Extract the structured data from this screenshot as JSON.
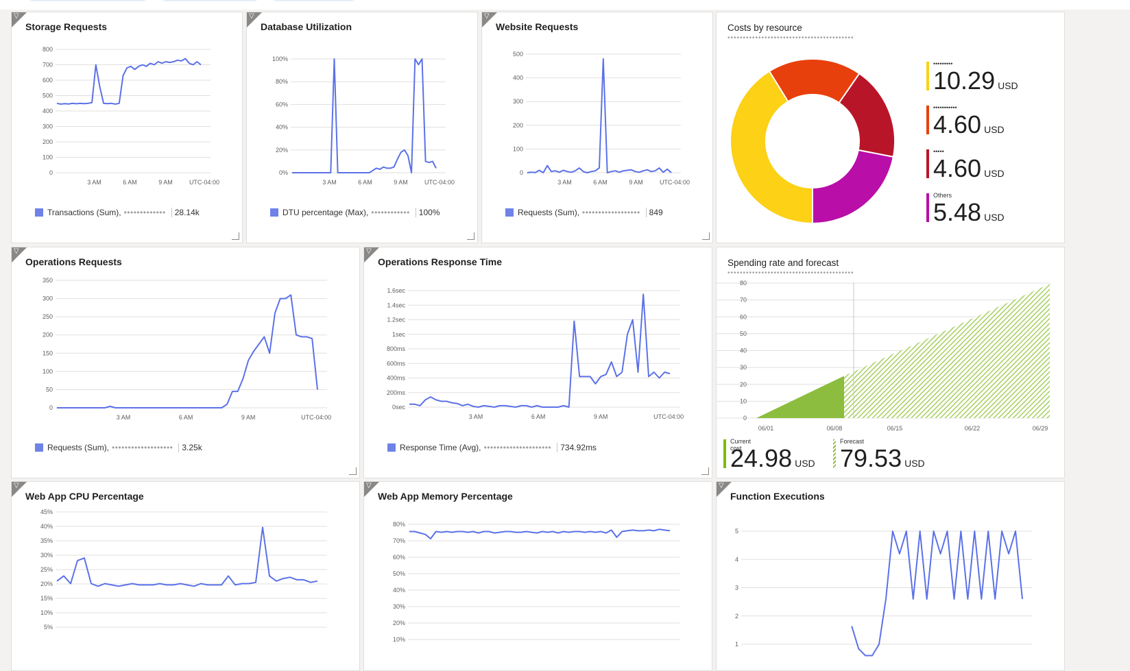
{
  "colors": {
    "line": "#5b71e8",
    "grid": "#e1dfdd",
    "pie": [
      "#fcd116",
      "#e8400c",
      "#b91528",
      "#b90ea8"
    ],
    "forecast": "#8cbd3f"
  },
  "tiles": {
    "storage": {
      "title": "Storage Requests",
      "legend_metric": "Transactions (Sum),",
      "legend_resource": "•••••••••••••",
      "legend_value": "28.14k"
    },
    "database": {
      "title": "Database Utilization",
      "legend_metric": "DTU percentage (Max),",
      "legend_resource": "••••••••••••",
      "legend_value": "100%"
    },
    "website": {
      "title": "Website Requests",
      "legend_metric": "Requests (Sum),",
      "legend_resource": "••••••••••••••••••",
      "legend_value": "849"
    },
    "costs": {
      "title": "Costs by resource",
      "subtitle": "•••••••••••••••••••••••••••••••••••••••••",
      "items": [
        {
          "label": "•••••••••",
          "value": "10.29",
          "unit": "USD"
        },
        {
          "label": "•••••••••••",
          "value": "4.60",
          "unit": "USD"
        },
        {
          "label": "•••••",
          "value": "4.60",
          "unit": "USD"
        },
        {
          "label": "Others",
          "value": "5.48",
          "unit": "USD"
        }
      ]
    },
    "ops_requests": {
      "title": "Operations Requests",
      "legend_metric": "Requests (Sum),",
      "legend_resource": "•••••••••••••••••••",
      "legend_value": "3.25k"
    },
    "ops_response": {
      "title": "Operations Response Time",
      "legend_metric": "Response Time (Avg),",
      "legend_resource": "•••••••••••••••••••••",
      "legend_value": "734.92ms"
    },
    "spending": {
      "title": "Spending rate and forecast",
      "subtitle": "•••••••••••••••••••••••••••••••••••••••••",
      "current_label": "Current cost",
      "current_value": "24.98",
      "current_unit": "USD",
      "forecast_label": "Forecast",
      "forecast_value": "79.53",
      "forecast_unit": "USD"
    },
    "cpu": {
      "title": "Web App CPU Percentage"
    },
    "memory": {
      "title": "Web App Memory Percentage"
    },
    "functions": {
      "title": "Function Executions"
    }
  },
  "chart_data": [
    {
      "id": "storage",
      "type": "line",
      "title": "Storage Requests",
      "yticks": [
        "800",
        "700",
        "600",
        "500",
        "400",
        "300",
        "200",
        "100",
        "0"
      ],
      "ylim": [
        0,
        800
      ],
      "xticks": [
        "3 AM",
        "6 AM",
        "9 AM",
        "UTC-04:00"
      ],
      "values": [
        450,
        445,
        448,
        446,
        450,
        447,
        450,
        448,
        450,
        455,
        700,
        560,
        450,
        448,
        450,
        445,
        450,
        630,
        680,
        690,
        670,
        690,
        700,
        690,
        710,
        700,
        720,
        710,
        720,
        715,
        720,
        730,
        725,
        740,
        710,
        700,
        720,
        700
      ]
    },
    {
      "id": "database",
      "type": "line",
      "title": "Database Utilization",
      "yticks": [
        "100%",
        "80%",
        "60%",
        "40%",
        "20%",
        "0%"
      ],
      "ylim": [
        0,
        100
      ],
      "xticks": [
        "3 AM",
        "6 AM",
        "9 AM",
        "UTC-04:00"
      ],
      "values": [
        0,
        0,
        0,
        0,
        0,
        0,
        0,
        0,
        0,
        0,
        0,
        0,
        100,
        0,
        0,
        0,
        0,
        0,
        0,
        0,
        0,
        0,
        0,
        2,
        4,
        3,
        5,
        4,
        4,
        5,
        12,
        18,
        20,
        15,
        0,
        100,
        95,
        100,
        10,
        9,
        10,
        4
      ]
    },
    {
      "id": "website",
      "type": "line",
      "title": "Website Requests",
      "yticks": [
        "500",
        "400",
        "300",
        "200",
        "100",
        "0"
      ],
      "ylim": [
        0,
        500
      ],
      "xticks": [
        "3 AM",
        "6 AM",
        "9 AM",
        "UTC-04:00"
      ],
      "values": [
        0,
        2,
        1,
        10,
        0,
        30,
        5,
        8,
        2,
        10,
        5,
        2,
        8,
        20,
        5,
        0,
        5,
        8,
        20,
        480,
        0,
        5,
        8,
        2,
        8,
        10,
        12,
        5,
        2,
        8,
        12,
        5,
        8,
        20,
        2,
        15,
        0
      ]
    },
    {
      "id": "ops_requests",
      "type": "line",
      "title": "Operations Requests",
      "yticks": [
        "350",
        "300",
        "250",
        "200",
        "150",
        "100",
        "50",
        "0"
      ],
      "ylim": [
        0,
        350
      ],
      "xticks": [
        "3 AM",
        "6 AM",
        "9 AM",
        "UTC-04:00"
      ],
      "values": [
        0,
        0,
        0,
        0,
        0,
        0,
        0,
        0,
        0,
        0,
        4,
        0,
        0,
        0,
        0,
        0,
        0,
        0,
        0,
        0,
        0,
        0,
        0,
        0,
        0,
        0,
        0,
        0,
        0,
        0,
        0,
        0,
        10,
        45,
        45,
        80,
        130,
        155,
        175,
        195,
        150,
        260,
        300,
        300,
        310,
        200,
        195,
        195,
        190,
        50
      ]
    },
    {
      "id": "ops_response",
      "type": "line",
      "title": "Operations Response Time",
      "yticks": [
        "1.6sec",
        "1.4sec",
        "1.2sec",
        "1sec",
        "800ms",
        "600ms",
        "400ms",
        "200ms",
        "0sec"
      ],
      "ylim": [
        0,
        1600
      ],
      "xticks": [
        "3 AM",
        "6 AM",
        "9 AM",
        "UTC-04:00"
      ],
      "values": [
        40,
        40,
        20,
        100,
        140,
        100,
        80,
        80,
        60,
        50,
        20,
        40,
        10,
        0,
        20,
        10,
        0,
        20,
        20,
        10,
        0,
        20,
        20,
        0,
        20,
        0,
        0,
        0,
        0,
        20,
        0,
        1180,
        420,
        420,
        420,
        320,
        420,
        450,
        620,
        420,
        480,
        1000,
        1200,
        480,
        1550,
        420,
        480,
        400,
        480,
        460
      ]
    },
    {
      "id": "cpu",
      "type": "line",
      "title": "Web App CPU Percentage",
      "yticks": [
        "45%",
        "40%",
        "35%",
        "30%",
        "25%",
        "20%",
        "15%",
        "10%",
        "5%"
      ],
      "ylim": [
        0,
        45
      ],
      "xticks": [],
      "values": [
        18,
        20,
        17,
        26,
        27,
        17,
        16,
        17,
        16.5,
        16,
        16.5,
        17,
        16.5,
        16.5,
        16.5,
        17,
        16.5,
        16.5,
        17,
        16.5,
        16,
        17,
        16.5,
        16.5,
        16.5,
        20,
        16.5,
        17,
        17,
        17.5,
        39,
        20,
        18,
        19,
        19.5,
        18.5,
        18.5,
        17.5,
        18
      ]
    },
    {
      "id": "memory",
      "type": "line",
      "title": "Web App Memory Percentage",
      "yticks": [
        "80%",
        "70%",
        "60%",
        "50%",
        "40%",
        "30%",
        "20%",
        "10%"
      ],
      "ylim": [
        0,
        80
      ],
      "xticks": [],
      "values": [
        75,
        75,
        74,
        73,
        70,
        75,
        74.5,
        75,
        74.5,
        75,
        75,
        74.5,
        75,
        74,
        75,
        75,
        74,
        74.5,
        75,
        75,
        74.5,
        74.5,
        75,
        74.5,
        74,
        75,
        74.5,
        75,
        74,
        75,
        74.5,
        75,
        75,
        74.5,
        75,
        74.5,
        75,
        74,
        76,
        71,
        75,
        75.5,
        76,
        75.5,
        75.5,
        76,
        75.5,
        76.5,
        76,
        75.5
      ]
    },
    {
      "id": "functions",
      "type": "line",
      "title": "Function Executions",
      "yticks": [
        "5",
        "4",
        "3",
        "2",
        "1"
      ],
      "ylim": [
        0,
        5
      ],
      "xticks": [],
      "values": [
        null,
        null,
        null,
        null,
        null,
        null,
        null,
        null,
        null,
        null,
        null,
        null,
        null,
        null,
        null,
        null,
        0.8,
        -0.2,
        -0.5,
        -0.5,
        0,
        2,
        5,
        4,
        5,
        2,
        5,
        2,
        5,
        4,
        5,
        2,
        5,
        2,
        5,
        2,
        5,
        2,
        5,
        4,
        5,
        2
      ]
    },
    {
      "id": "costs",
      "type": "pie",
      "title": "Costs by resource",
      "values": [
        10.29,
        4.6,
        4.6,
        5.48
      ],
      "labels": [
        "",
        "",
        "",
        "Others"
      ]
    },
    {
      "id": "spending",
      "type": "area",
      "title": "Spending rate and forecast",
      "yticks": [
        "80",
        "70",
        "60",
        "50",
        "40",
        "30",
        "20",
        "10",
        "0"
      ],
      "ylim": [
        0,
        80
      ],
      "xticks": [
        "06/01",
        "06/08",
        "06/15",
        "06/22",
        "06/29"
      ],
      "current": 24.98,
      "forecast": 79.53
    }
  ]
}
